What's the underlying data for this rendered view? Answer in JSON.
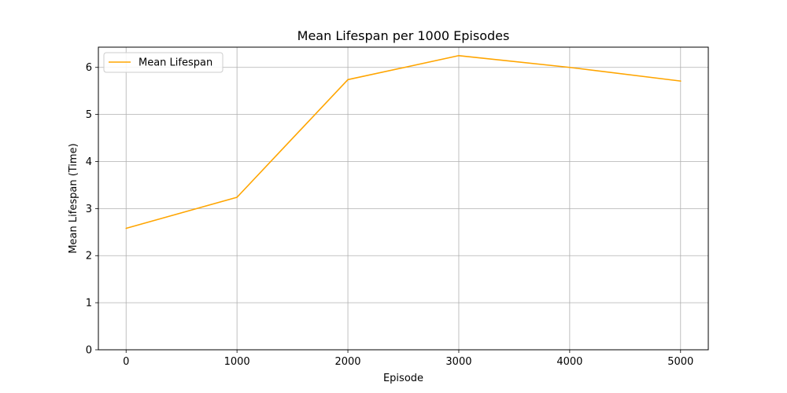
{
  "chart_data": {
    "type": "line",
    "title": "Mean Lifespan per 1000 Episodes",
    "xlabel": "Episode",
    "ylabel": "Mean Lifespan (Time)",
    "x": [
      0,
      1000,
      2000,
      3000,
      4000,
      5000
    ],
    "series": [
      {
        "name": "Mean Lifespan",
        "color": "#ffa500",
        "values": [
          2.58,
          3.24,
          5.74,
          6.25,
          6.0,
          5.71
        ]
      }
    ],
    "xlim": [
      -250,
      5250
    ],
    "ylim": [
      0,
      6.43
    ],
    "xticks": [
      "0",
      "1000",
      "2000",
      "3000",
      "4000",
      "5000"
    ],
    "yticks": [
      "0",
      "1",
      "2",
      "3",
      "4",
      "5",
      "6"
    ],
    "grid": true,
    "legend_position": "top-left"
  }
}
